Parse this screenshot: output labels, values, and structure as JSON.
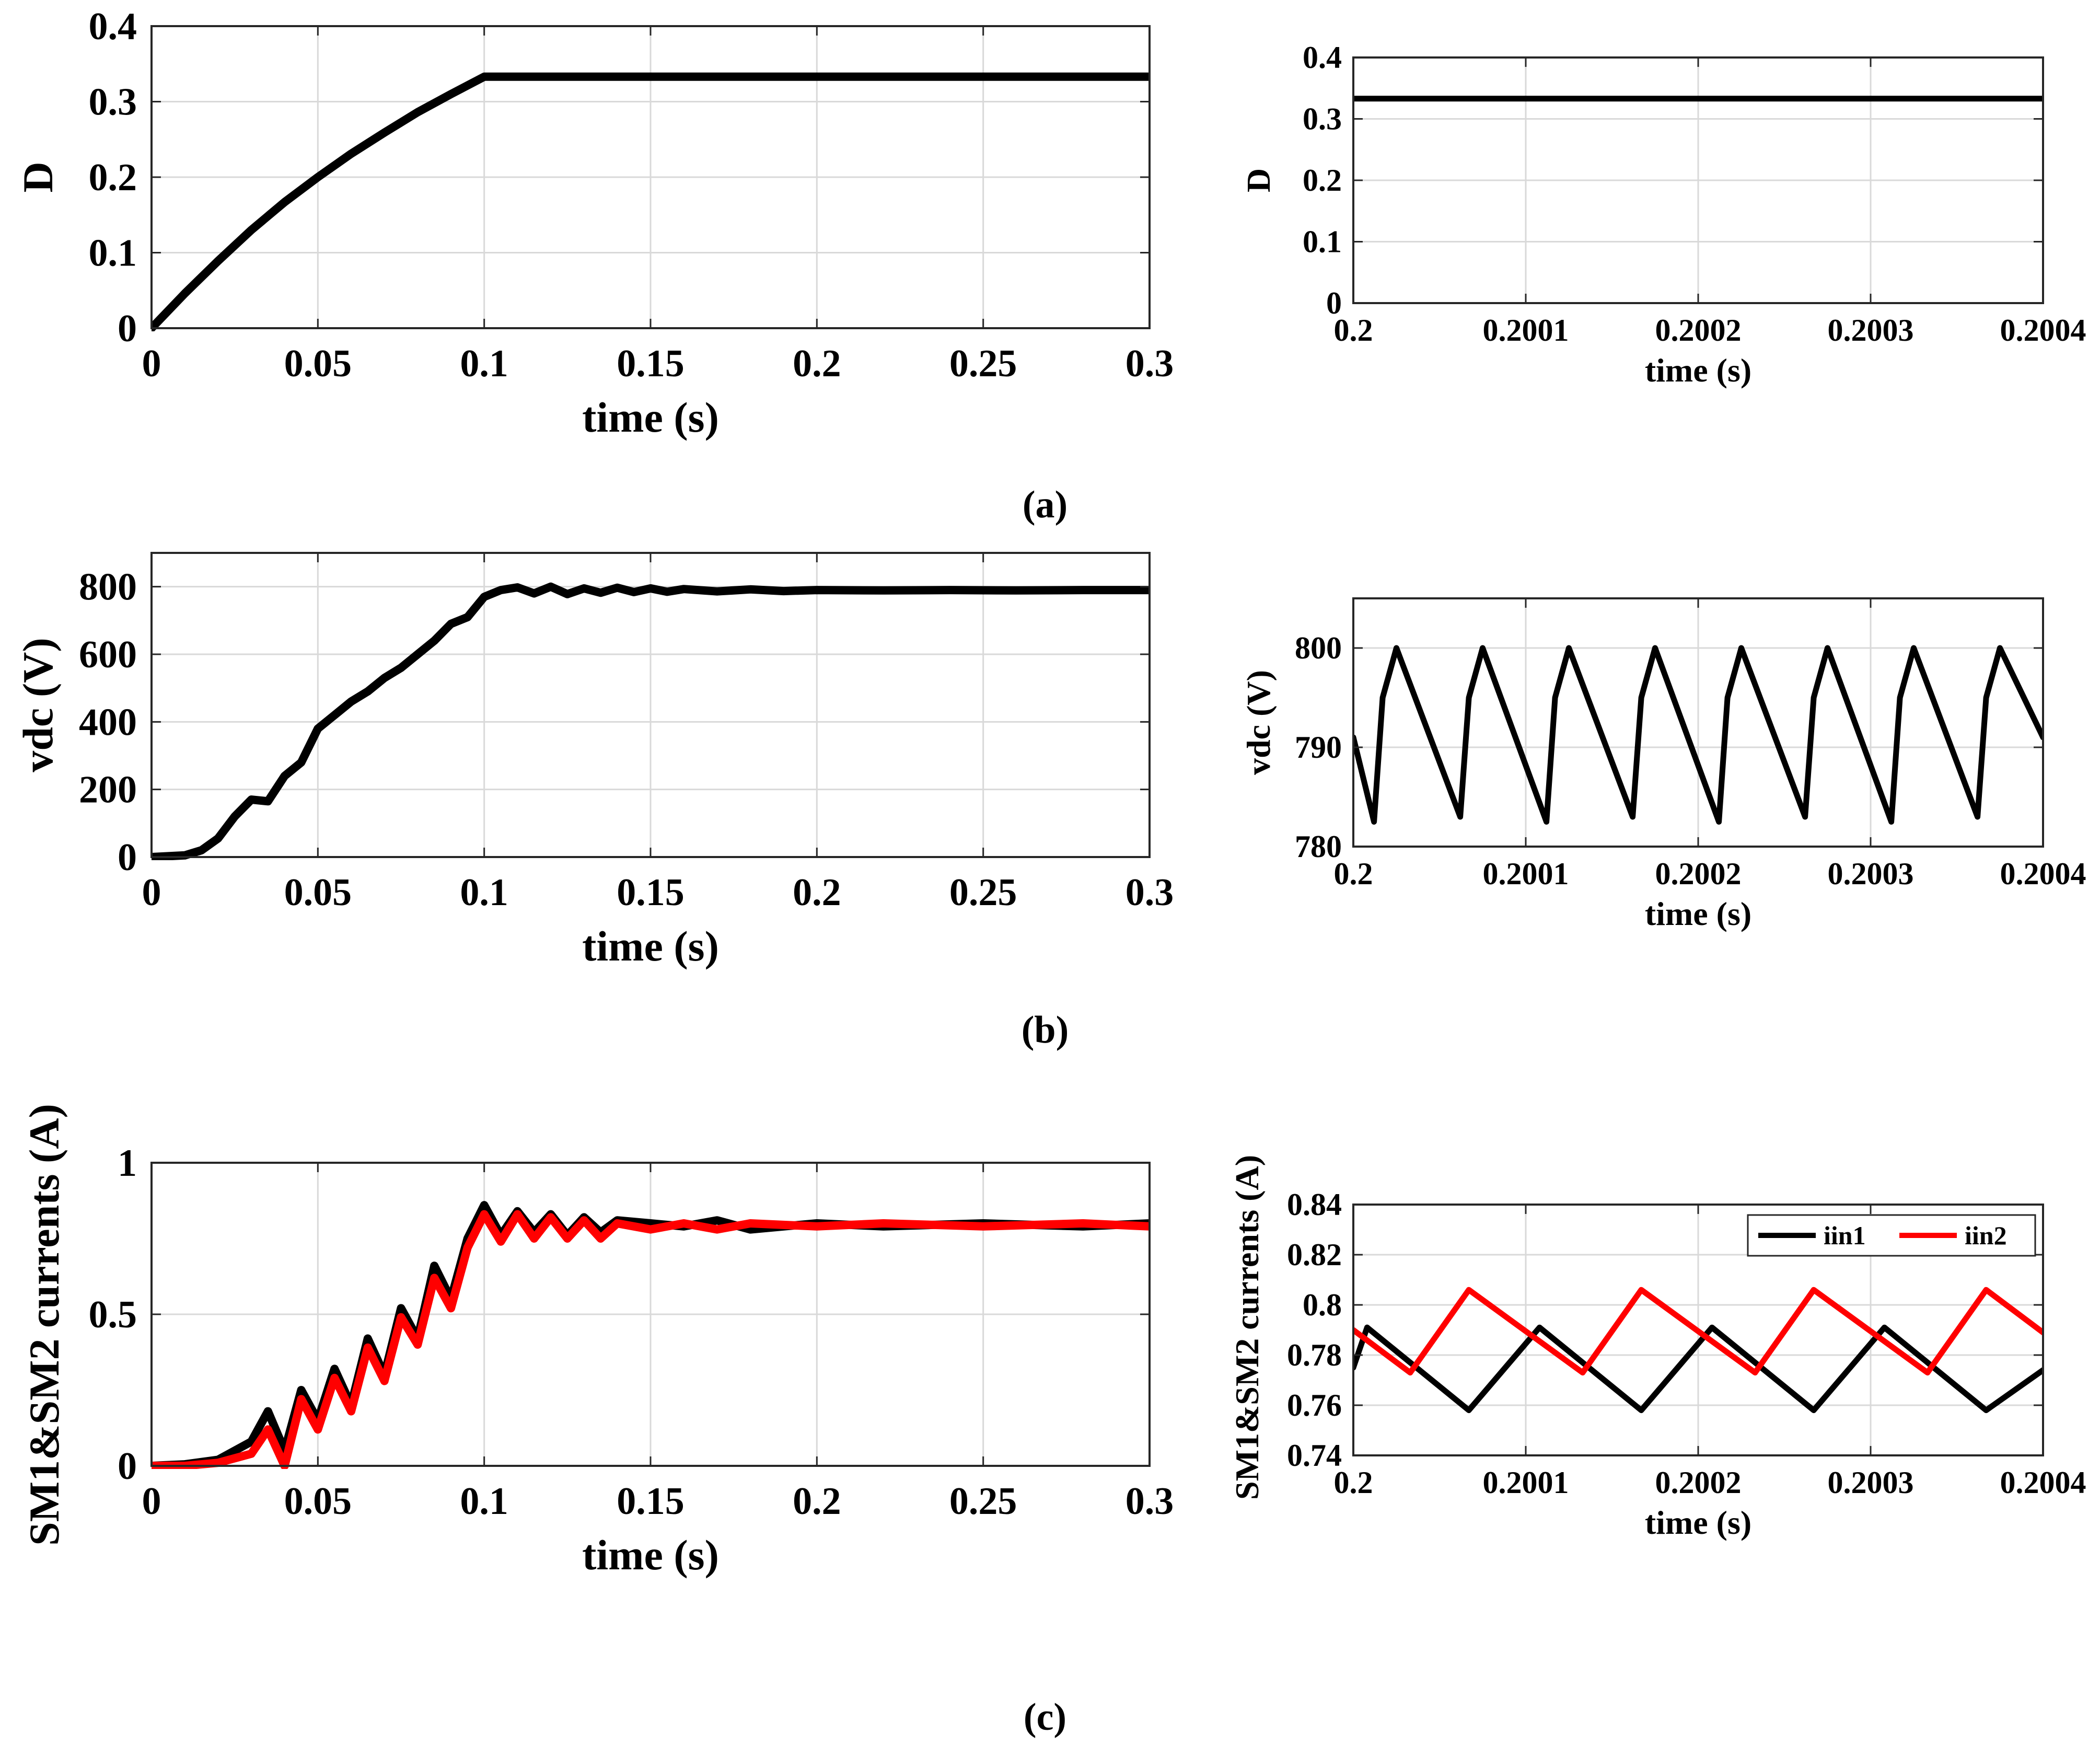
{
  "captions": [
    "(a)",
    "(b)",
    "(c)"
  ],
  "chart_data": [
    {
      "id": "a-full",
      "type": "line",
      "panel": "(a)",
      "xlabel": "time (s)",
      "ylabel": "D",
      "xlim": [
        0,
        0.3
      ],
      "ylim": [
        0,
        0.4
      ],
      "xticks": [
        0,
        0.05,
        0.1,
        0.15,
        0.2,
        0.25,
        0.3
      ],
      "xticklabels": [
        "0",
        "0.05",
        "0.1",
        "0.15",
        "0.2",
        "0.25",
        "0.3"
      ],
      "yticks": [
        0,
        0.1,
        0.2,
        0.3,
        0.4
      ],
      "yticklabels": [
        "0",
        "0.1",
        "0.2",
        "0.3",
        "0.4"
      ],
      "grid": true,
      "series": [
        {
          "name": "D",
          "color": "#000000",
          "x": [
            0,
            0.01,
            0.02,
            0.03,
            0.04,
            0.05,
            0.06,
            0.07,
            0.08,
            0.09,
            0.1,
            0.3
          ],
          "y": [
            0,
            0.046,
            0.089,
            0.13,
            0.167,
            0.2,
            0.231,
            0.259,
            0.286,
            0.31,
            0.333,
            0.333
          ]
        }
      ]
    },
    {
      "id": "a-zoom",
      "type": "line",
      "panel": "(a)",
      "xlabel": "time (s)",
      "ylabel": "D",
      "xlim": [
        0.2,
        0.2004
      ],
      "ylim": [
        0,
        0.4
      ],
      "xticks": [
        0.2,
        0.2001,
        0.2002,
        0.2003,
        0.2004
      ],
      "xticklabels": [
        "0.2",
        "0.2001",
        "0.2002",
        "0.2003",
        "0.2004"
      ],
      "yticks": [
        0,
        0.1,
        0.2,
        0.3,
        0.4
      ],
      "yticklabels": [
        "0",
        "0.1",
        "0.2",
        "0.3",
        "0.4"
      ],
      "grid": true,
      "series": [
        {
          "name": "D",
          "color": "#000000",
          "x": [
            0.2,
            0.2004
          ],
          "y": [
            0.333,
            0.333
          ]
        }
      ]
    },
    {
      "id": "b-full",
      "type": "line",
      "panel": "(b)",
      "xlabel": "time (s)",
      "ylabel": "vdc (V)",
      "xlim": [
        0,
        0.3
      ],
      "ylim": [
        0,
        900
      ],
      "xticks": [
        0,
        0.05,
        0.1,
        0.15,
        0.2,
        0.25,
        0.3
      ],
      "xticklabels": [
        "0",
        "0.05",
        "0.1",
        "0.15",
        "0.2",
        "0.25",
        "0.3"
      ],
      "yticks": [
        0,
        200,
        400,
        600,
        800
      ],
      "yticklabels": [
        "0",
        "200",
        "400",
        "600",
        "800"
      ],
      "grid": true,
      "series": [
        {
          "name": "vdc",
          "color": "#000000",
          "x": [
            0,
            0.01,
            0.015,
            0.02,
            0.025,
            0.03,
            0.035,
            0.04,
            0.045,
            0.05,
            0.055,
            0.06,
            0.065,
            0.07,
            0.075,
            0.08,
            0.085,
            0.09,
            0.095,
            0.1,
            0.105,
            0.11,
            0.115,
            0.12,
            0.125,
            0.13,
            0.135,
            0.14,
            0.145,
            0.15,
            0.155,
            0.16,
            0.17,
            0.18,
            0.19,
            0.2,
            0.22,
            0.24,
            0.26,
            0.28,
            0.3
          ],
          "y": [
            0,
            5,
            20,
            55,
            120,
            170,
            165,
            240,
            280,
            380,
            420,
            460,
            490,
            530,
            560,
            600,
            640,
            690,
            710,
            770,
            790,
            798,
            780,
            800,
            778,
            795,
            782,
            797,
            784,
            795,
            785,
            793,
            786,
            792,
            787,
            790,
            789,
            790,
            789,
            790,
            790
          ]
        }
      ]
    },
    {
      "id": "b-zoom",
      "type": "line",
      "panel": "(b)",
      "xlabel": "time (s)",
      "ylabel": "vdc (V)",
      "xlim": [
        0.2,
        0.2004
      ],
      "ylim": [
        780,
        805
      ],
      "xticks": [
        0.2,
        0.2001,
        0.2002,
        0.2003,
        0.2004
      ],
      "xticklabels": [
        "0.2",
        "0.2001",
        "0.2002",
        "0.2003",
        "0.2004"
      ],
      "yticks": [
        780,
        790,
        800
      ],
      "yticklabels": [
        "780",
        "790",
        "800"
      ],
      "grid": true,
      "series": [
        {
          "name": "vdc",
          "color": "#000000",
          "x": [
            0.2,
            0.200012,
            0.200017,
            0.200025,
            0.200062,
            0.200067,
            0.200075,
            0.200112,
            0.200117,
            0.200125,
            0.200162,
            0.200167,
            0.200175,
            0.200212,
            0.200217,
            0.200225,
            0.200262,
            0.200267,
            0.200275,
            0.200312,
            0.200317,
            0.200325,
            0.200362,
            0.200367,
            0.200375,
            0.2004
          ],
          "y": [
            791,
            782.5,
            795,
            800,
            783,
            795,
            800,
            782.5,
            795,
            800,
            783,
            795,
            800,
            782.5,
            795,
            800,
            783,
            795,
            800,
            782.5,
            795,
            800,
            783,
            795,
            800,
            791
          ]
        }
      ]
    },
    {
      "id": "c-full",
      "type": "line",
      "panel": "(c)",
      "xlabel": "time (s)",
      "ylabel": "SM1&SM2 currents (A)",
      "xlim": [
        0,
        0.3
      ],
      "ylim": [
        0,
        1
      ],
      "xticks": [
        0,
        0.05,
        0.1,
        0.15,
        0.2,
        0.25,
        0.3
      ],
      "xticklabels": [
        "0",
        "0.05",
        "0.1",
        "0.15",
        "0.2",
        "0.25",
        "0.3"
      ],
      "yticks": [
        0,
        0.5,
        1
      ],
      "yticklabels": [
        "0",
        "0.5",
        "1"
      ],
      "grid": true,
      "series": [
        {
          "name": "iin1",
          "color": "#000000",
          "x": [
            0,
            0.01,
            0.02,
            0.03,
            0.035,
            0.04,
            0.045,
            0.05,
            0.055,
            0.06,
            0.065,
            0.07,
            0.075,
            0.08,
            0.085,
            0.09,
            0.095,
            0.1,
            0.105,
            0.11,
            0.115,
            0.12,
            0.125,
            0.13,
            0.135,
            0.14,
            0.15,
            0.16,
            0.17,
            0.18,
            0.2,
            0.22,
            0.25,
            0.28,
            0.3
          ],
          "y": [
            0,
            0.005,
            0.02,
            0.08,
            0.18,
            0.05,
            0.25,
            0.15,
            0.32,
            0.2,
            0.42,
            0.3,
            0.52,
            0.42,
            0.66,
            0.55,
            0.75,
            0.86,
            0.76,
            0.84,
            0.77,
            0.83,
            0.76,
            0.82,
            0.77,
            0.81,
            0.8,
            0.79,
            0.81,
            0.78,
            0.8,
            0.79,
            0.8,
            0.79,
            0.8
          ]
        },
        {
          "name": "iin2",
          "color": "#ff0000",
          "x": [
            0,
            0.01,
            0.02,
            0.03,
            0.035,
            0.04,
            0.045,
            0.05,
            0.055,
            0.06,
            0.065,
            0.07,
            0.075,
            0.08,
            0.085,
            0.09,
            0.095,
            0.1,
            0.105,
            0.11,
            0.115,
            0.12,
            0.125,
            0.13,
            0.135,
            0.14,
            0.15,
            0.16,
            0.17,
            0.18,
            0.2,
            0.22,
            0.25,
            0.28,
            0.3
          ],
          "y": [
            0,
            0.0,
            0.01,
            0.04,
            0.12,
            0.0,
            0.22,
            0.12,
            0.29,
            0.18,
            0.39,
            0.28,
            0.49,
            0.4,
            0.62,
            0.52,
            0.72,
            0.83,
            0.74,
            0.83,
            0.75,
            0.82,
            0.75,
            0.81,
            0.75,
            0.8,
            0.78,
            0.8,
            0.78,
            0.8,
            0.79,
            0.8,
            0.79,
            0.8,
            0.79
          ]
        }
      ]
    },
    {
      "id": "c-zoom",
      "type": "line",
      "panel": "(c)",
      "xlabel": "time (s)",
      "ylabel": "SM1&SM2 currents (A)",
      "xlim": [
        0.2,
        0.2004
      ],
      "ylim": [
        0.74,
        0.84
      ],
      "xticks": [
        0.2,
        0.2001,
        0.2002,
        0.2003,
        0.2004
      ],
      "xticklabels": [
        "0.2",
        "0.2001",
        "0.2002",
        "0.2003",
        "0.2004"
      ],
      "yticks": [
        0.74,
        0.76,
        0.78,
        0.8,
        0.82,
        0.84
      ],
      "yticklabels": [
        "0.74",
        "0.76",
        "0.78",
        "0.8",
        "0.82",
        "0.84"
      ],
      "grid": true,
      "legend": {
        "position": "top-right",
        "entries": [
          "iin1",
          "iin2"
        ]
      },
      "series": [
        {
          "name": "iin1",
          "color": "#000000",
          "x": [
            0.2,
            0.200008,
            0.200067,
            0.200108,
            0.200167,
            0.200208,
            0.200267,
            0.200308,
            0.200367,
            0.2004
          ],
          "y": [
            0.775,
            0.791,
            0.758,
            0.791,
            0.758,
            0.791,
            0.758,
            0.791,
            0.758,
            0.774
          ]
        },
        {
          "name": "iin2",
          "color": "#ff0000",
          "x": [
            0.2,
            0.200033,
            0.200067,
            0.200133,
            0.200167,
            0.200233,
            0.200267,
            0.200333,
            0.200367,
            0.2004
          ],
          "y": [
            0.79,
            0.773,
            0.806,
            0.773,
            0.806,
            0.773,
            0.806,
            0.773,
            0.806,
            0.789
          ]
        }
      ]
    }
  ]
}
